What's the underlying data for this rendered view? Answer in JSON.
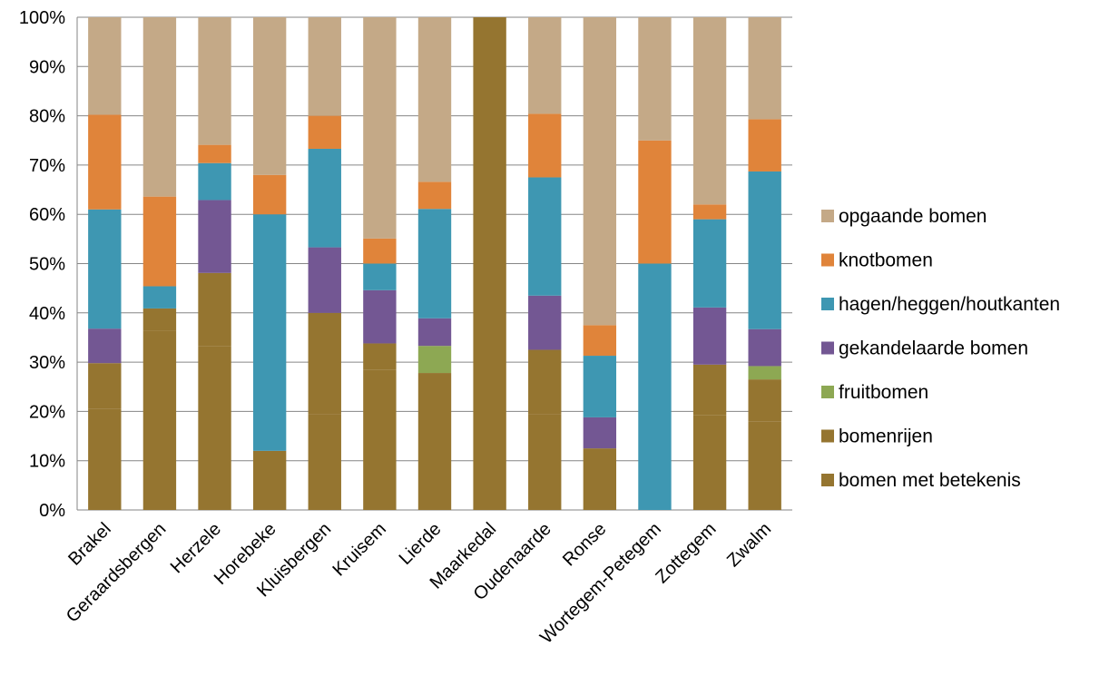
{
  "chart_data": {
    "type": "bar",
    "stacked": true,
    "percent": true,
    "title": "",
    "xlabel": "",
    "ylabel": "",
    "ylim": [
      0,
      100
    ],
    "yticks": [
      "0%",
      "10%",
      "20%",
      "30%",
      "40%",
      "50%",
      "60%",
      "70%",
      "80%",
      "90%",
      "100%"
    ],
    "grid": true,
    "legend_position": "right",
    "categories": [
      "Brakel",
      "Geraardsbergen",
      "Herzele",
      "Horebeke",
      "Kluisbergen",
      "Kruisem",
      "Lierde",
      "Maarkedal",
      "Oudenaarde",
      "Ronse",
      "Wortegem-Petegem",
      "Zottegem",
      "Zwalm"
    ],
    "series": [
      {
        "name": "bomen met betekenis",
        "color": "#957530",
        "values": [
          20.5,
          36.3,
          33.3,
          0,
          19.5,
          28.5,
          0,
          0,
          19.5,
          0,
          0,
          19.2,
          18.0
        ]
      },
      {
        "name": "bomenrijen",
        "color": "#957530",
        "values": [
          9.3,
          4.6,
          14.8,
          12.0,
          20.5,
          5.3,
          27.8,
          100,
          13.0,
          12.5,
          0,
          10.3,
          8.5
        ]
      },
      {
        "name": "fruitbomen",
        "color": "#8DA853",
        "values": [
          0,
          0,
          0,
          0,
          0,
          0,
          5.5,
          0,
          0,
          0,
          0,
          0,
          2.7
        ]
      },
      {
        "name": "gekandelaarde bomen",
        "color": "#735793",
        "values": [
          7.0,
          0,
          14.8,
          0,
          13.3,
          10.8,
          5.6,
          0,
          11.0,
          6.3,
          0,
          11.6,
          7.5
        ]
      },
      {
        "name": "hagen/heggen/houtkanten",
        "color": "#3E97B2",
        "values": [
          24.2,
          4.5,
          7.5,
          48.0,
          20.0,
          5.4,
          22.2,
          0,
          24.0,
          12.5,
          50.0,
          17.9,
          32.0
        ]
      },
      {
        "name": "knotbomen",
        "color": "#E0843A",
        "values": [
          19.2,
          18.2,
          3.7,
          8.0,
          6.7,
          5.1,
          5.5,
          0,
          12.9,
          6.2,
          25.0,
          3.0,
          10.6
        ]
      },
      {
        "name": "opgaande bomen",
        "color": "#C4A987",
        "values": [
          19.8,
          36.4,
          25.9,
          32.0,
          20.0,
          44.9,
          33.4,
          0,
          19.6,
          62.5,
          25.0,
          38.0,
          20.7
        ]
      }
    ]
  }
}
